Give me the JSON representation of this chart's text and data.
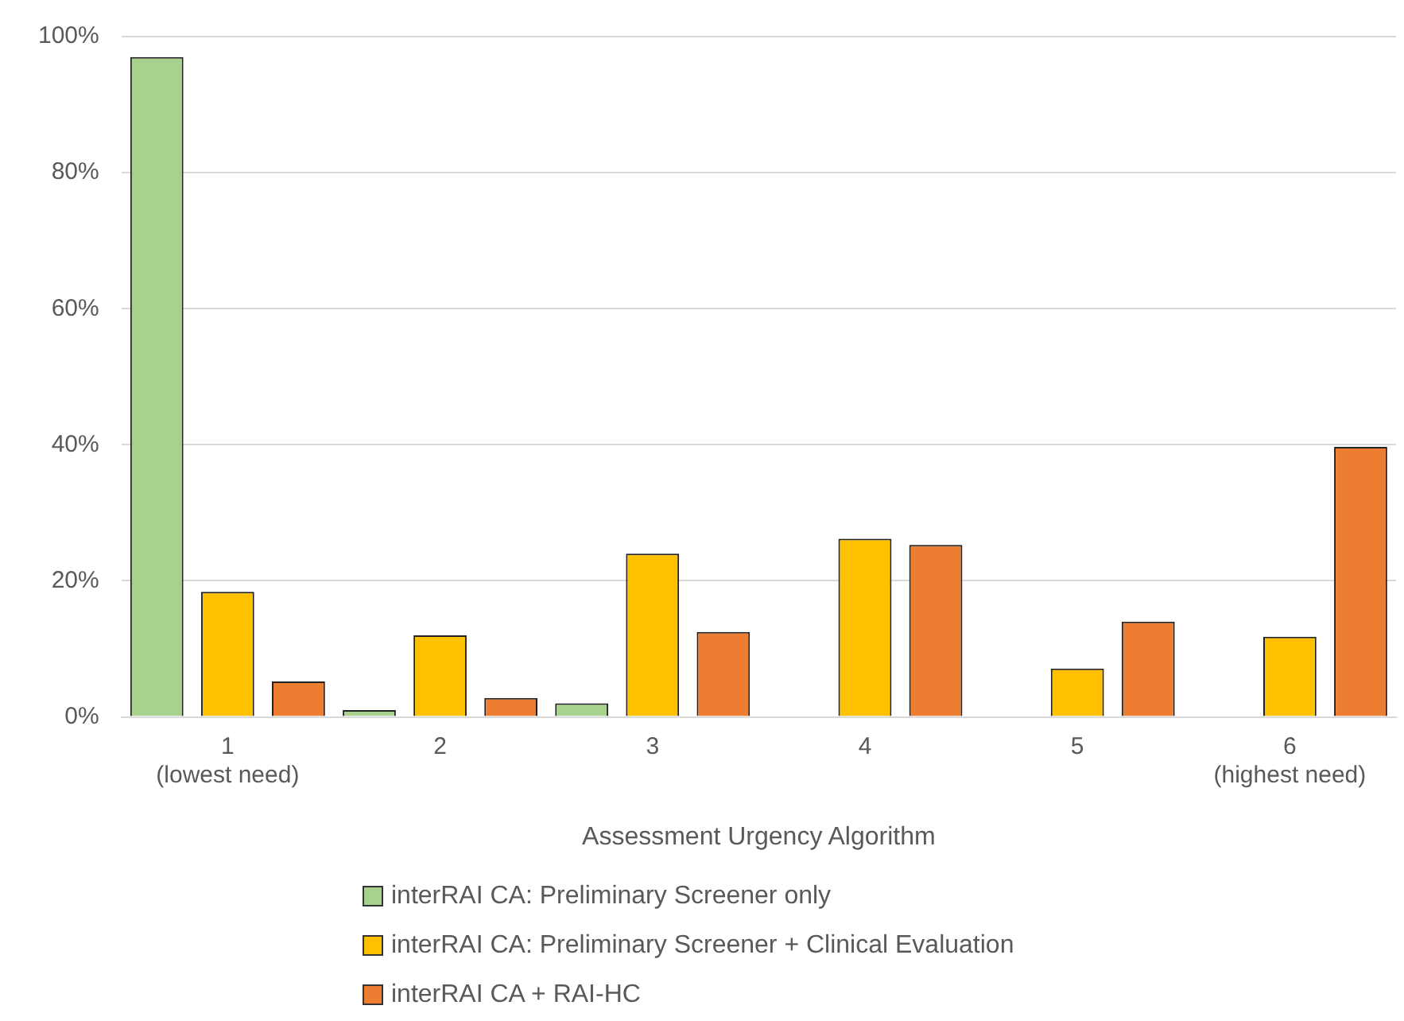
{
  "chart_data": {
    "type": "bar",
    "xlabel": "Assessment Urgency Algorithm",
    "categories": [
      "1\n(lowest need)",
      "2",
      "3",
      "4",
      "5",
      "6\n(highest need)"
    ],
    "series": [
      {
        "name": "interRAI CA: Preliminary Screener only",
        "color": "#a9d18e",
        "values": [
          97,
          1,
          2,
          0,
          0,
          0
        ]
      },
      {
        "name": "interRAI CA: Preliminary Screener + Clinical Evaluation",
        "color": "#ffc000",
        "values": [
          18.4,
          12,
          24,
          26.2,
          7.1,
          11.8
        ]
      },
      {
        "name": "interRAI CA + RAI-HC",
        "color": "#ed7d31",
        "values": [
          5.2,
          2.8,
          12.5,
          25.3,
          14,
          39.7
        ]
      }
    ],
    "ylim": [
      0,
      100
    ],
    "yticks": [
      {
        "value": 0,
        "label": "0%"
      },
      {
        "value": 20,
        "label": "20%"
      },
      {
        "value": 40,
        "label": "40%"
      },
      {
        "value": 60,
        "label": "60%"
      },
      {
        "value": 80,
        "label": "80%"
      },
      {
        "value": 100,
        "label": "100%"
      }
    ],
    "grid": "y",
    "legend": "bottom"
  }
}
